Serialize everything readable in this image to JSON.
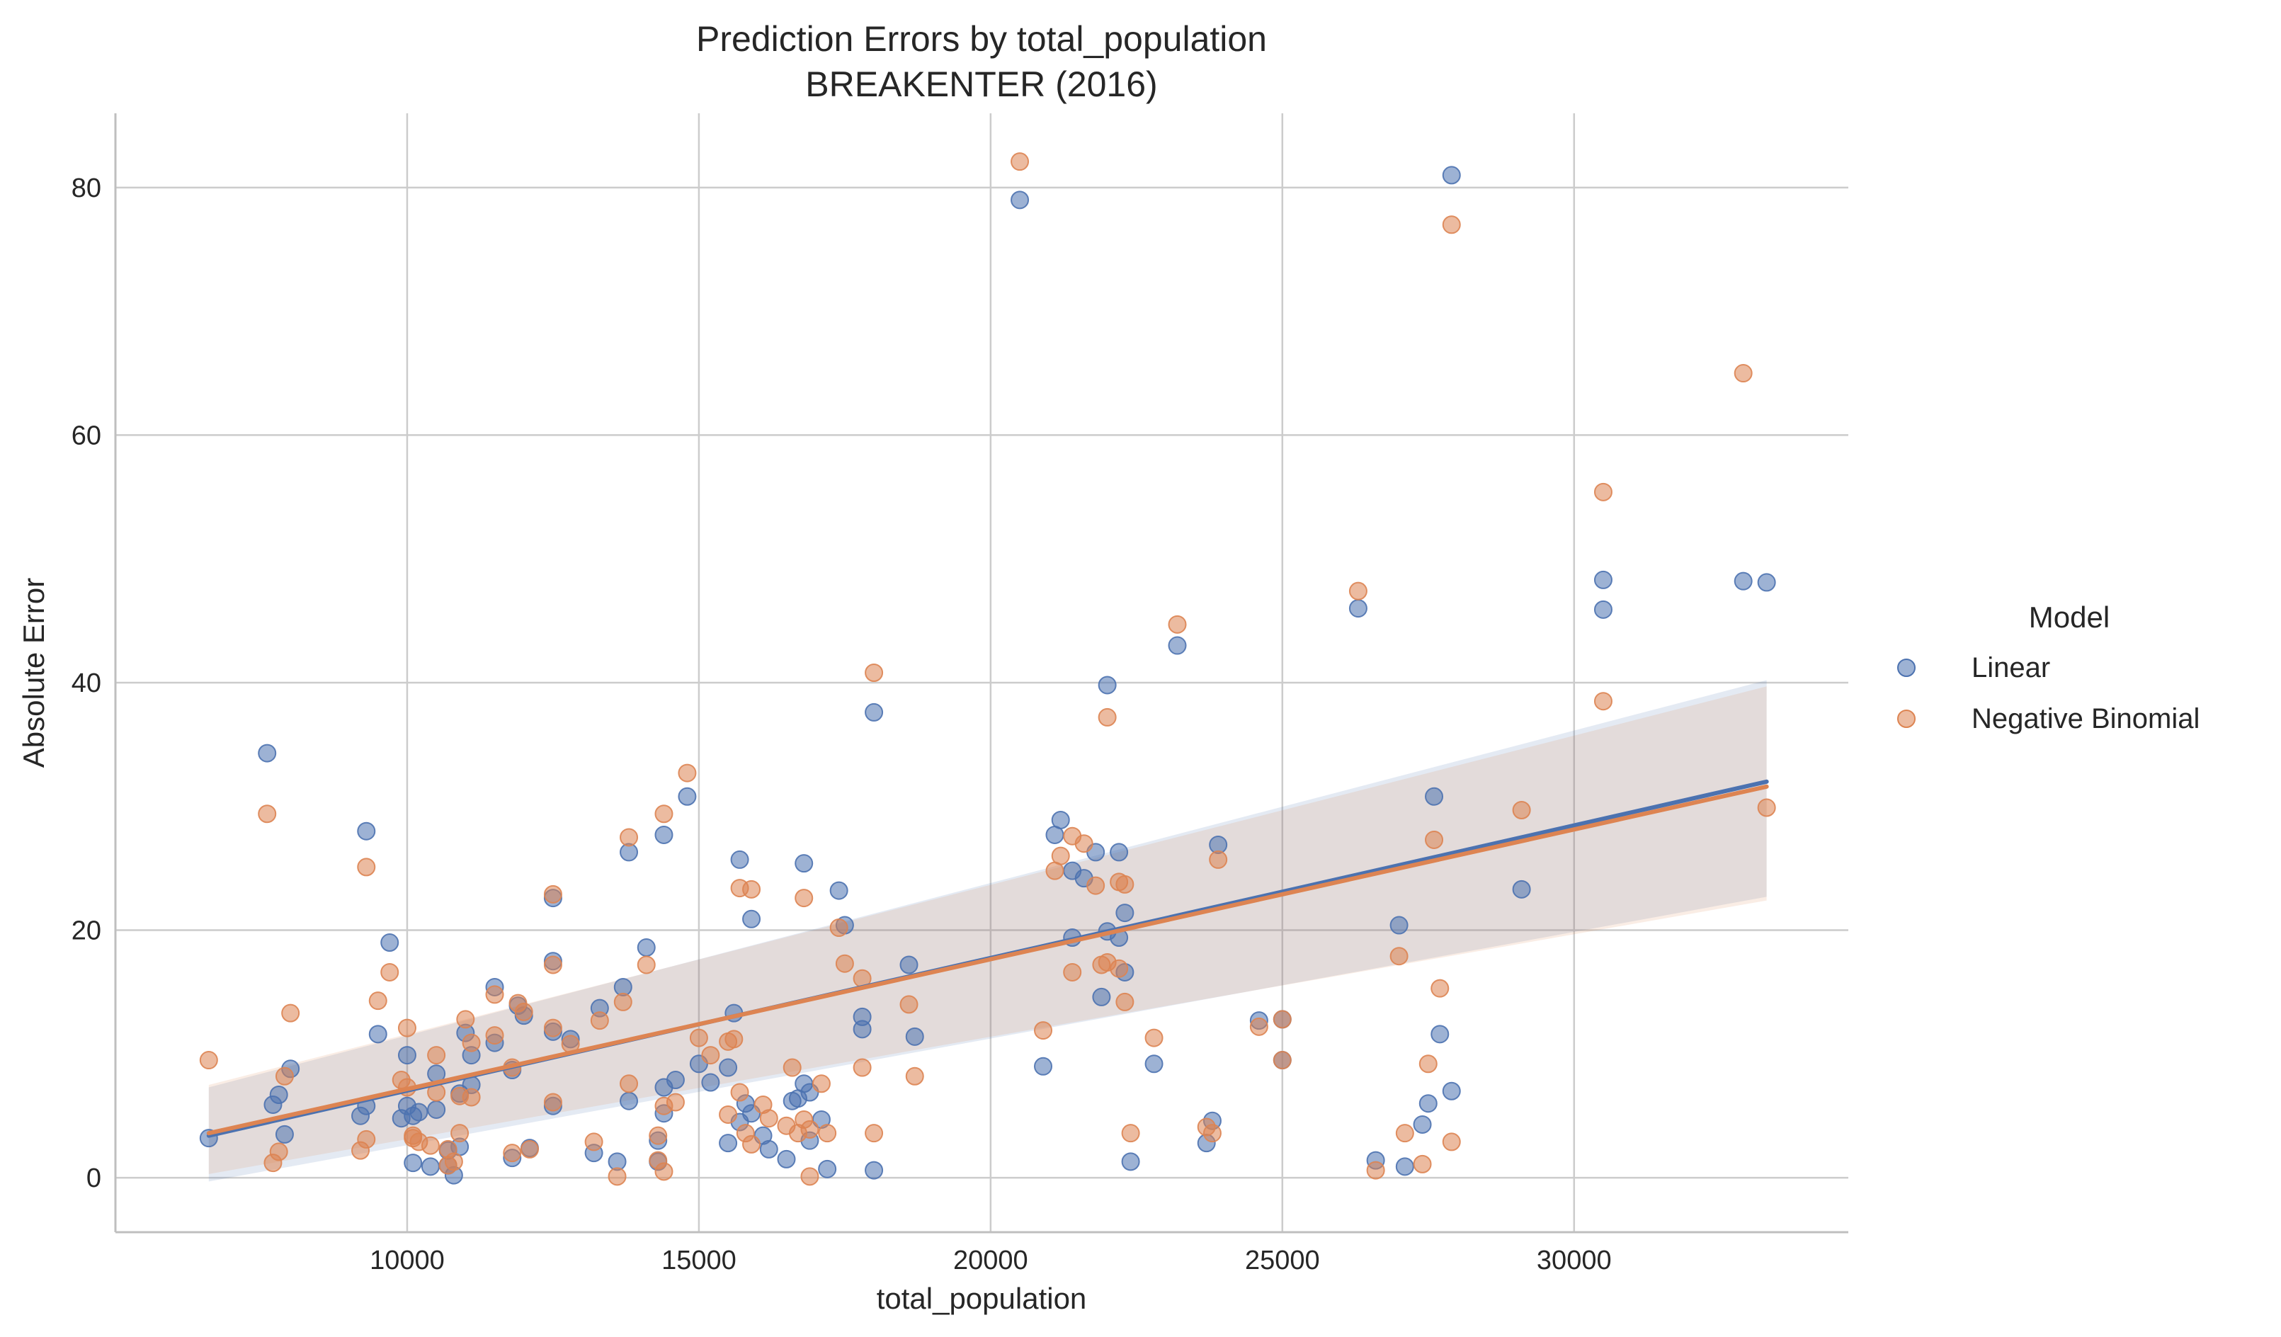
{
  "chart_data": {
    "type": "scatter",
    "title": "Prediction Errors by total_population",
    "subtitle": "BREAKENTER (2016)",
    "xlabel": "total_population",
    "ylabel": "Absolute Error",
    "xlim": [
      5000,
      34700
    ],
    "ylim": [
      -4.4,
      86
    ],
    "xticks": [
      10000,
      15000,
      20000,
      25000,
      30000
    ],
    "yticks": [
      0,
      20,
      40,
      60,
      80
    ],
    "grid": true,
    "legend": {
      "title": "Model",
      "placement": "right"
    },
    "series": [
      {
        "name": "Linear",
        "color": "#4c72b0",
        "points": [
          [
            6600,
            3.2
          ],
          [
            7600,
            34.3
          ],
          [
            7700,
            5.9
          ],
          [
            7800,
            6.7
          ],
          [
            7900,
            3.5
          ],
          [
            8000,
            8.8
          ],
          [
            9200,
            5.0
          ],
          [
            9300,
            28.0
          ],
          [
            9300,
            5.8
          ],
          [
            9500,
            11.6
          ],
          [
            9700,
            19.0
          ],
          [
            9900,
            4.8
          ],
          [
            10000,
            9.9
          ],
          [
            10000,
            5.8
          ],
          [
            10100,
            5.0
          ],
          [
            10100,
            1.2
          ],
          [
            10200,
            5.3
          ],
          [
            10400,
            0.9
          ],
          [
            10500,
            8.4
          ],
          [
            10500,
            5.5
          ],
          [
            10700,
            2.2
          ],
          [
            10700,
            1.0
          ],
          [
            10800,
            0.2
          ],
          [
            10900,
            6.8
          ],
          [
            10900,
            2.5
          ],
          [
            11000,
            11.7
          ],
          [
            11100,
            7.5
          ],
          [
            11100,
            9.9
          ],
          [
            11500,
            15.4
          ],
          [
            11500,
            10.9
          ],
          [
            11800,
            8.7
          ],
          [
            11800,
            1.6
          ],
          [
            11900,
            13.9
          ],
          [
            12000,
            13.1
          ],
          [
            12100,
            2.4
          ],
          [
            12500,
            11.8
          ],
          [
            12500,
            22.6
          ],
          [
            12500,
            17.5
          ],
          [
            12500,
            5.8
          ],
          [
            12800,
            11.2
          ],
          [
            13200,
            2.0
          ],
          [
            13300,
            13.7
          ],
          [
            13600,
            1.3
          ],
          [
            13700,
            15.4
          ],
          [
            13800,
            26.3
          ],
          [
            13800,
            6.2
          ],
          [
            14100,
            18.6
          ],
          [
            14300,
            3.0
          ],
          [
            14300,
            1.3
          ],
          [
            14400,
            5.2
          ],
          [
            14400,
            7.3
          ],
          [
            14400,
            27.7
          ],
          [
            14600,
            7.9
          ],
          [
            14800,
            30.8
          ],
          [
            15000,
            9.2
          ],
          [
            15200,
            7.7
          ],
          [
            15500,
            2.8
          ],
          [
            15500,
            8.9
          ],
          [
            15600,
            13.3
          ],
          [
            15700,
            4.5
          ],
          [
            15700,
            25.7
          ],
          [
            15800,
            6.0
          ],
          [
            15900,
            5.2
          ],
          [
            15900,
            20.9
          ],
          [
            16100,
            3.4
          ],
          [
            16200,
            2.3
          ],
          [
            16500,
            1.5
          ],
          [
            16600,
            6.2
          ],
          [
            16700,
            6.4
          ],
          [
            16800,
            25.4
          ],
          [
            16800,
            7.6
          ],
          [
            16900,
            6.9
          ],
          [
            16900,
            3.0
          ],
          [
            17100,
            4.7
          ],
          [
            17200,
            0.7
          ],
          [
            17400,
            23.2
          ],
          [
            17500,
            20.4
          ],
          [
            17800,
            12.0
          ],
          [
            17800,
            13.0
          ],
          [
            18000,
            37.6
          ],
          [
            18000,
            0.6
          ],
          [
            18600,
            17.2
          ],
          [
            18700,
            11.4
          ],
          [
            20500,
            79.0
          ],
          [
            20900,
            9.0
          ],
          [
            21100,
            27.7
          ],
          [
            21200,
            28.9
          ],
          [
            21400,
            19.4
          ],
          [
            21400,
            24.8
          ],
          [
            21600,
            24.2
          ],
          [
            21800,
            26.3
          ],
          [
            21900,
            14.6
          ],
          [
            22000,
            39.8
          ],
          [
            22000,
            19.9
          ],
          [
            22200,
            19.4
          ],
          [
            22200,
            26.3
          ],
          [
            22300,
            16.6
          ],
          [
            22300,
            21.4
          ],
          [
            22400,
            1.3
          ],
          [
            22800,
            9.2
          ],
          [
            23200,
            43.0
          ],
          [
            23700,
            2.8
          ],
          [
            23800,
            4.6
          ],
          [
            23900,
            26.9
          ],
          [
            24600,
            12.7
          ],
          [
            25000,
            12.8
          ],
          [
            25000,
            9.5
          ],
          [
            26300,
            46.0
          ],
          [
            26600,
            1.4
          ],
          [
            27000,
            20.4
          ],
          [
            27100,
            0.9
          ],
          [
            27400,
            4.3
          ],
          [
            27500,
            6.0
          ],
          [
            27600,
            30.8
          ],
          [
            27700,
            11.6
          ],
          [
            27900,
            81.0
          ],
          [
            27900,
            7.0
          ],
          [
            29100,
            23.3
          ],
          [
            30500,
            45.9
          ],
          [
            30500,
            48.3
          ],
          [
            32900,
            48.2
          ],
          [
            33300,
            48.1
          ]
        ]
      },
      {
        "name": "Negative Binomial",
        "color": "#dd8452",
        "points": [
          [
            6600,
            9.5
          ],
          [
            7600,
            29.4
          ],
          [
            7700,
            1.2
          ],
          [
            7800,
            2.1
          ],
          [
            7900,
            8.2
          ],
          [
            8000,
            13.3
          ],
          [
            9200,
            2.2
          ],
          [
            9300,
            25.1
          ],
          [
            9300,
            3.1
          ],
          [
            9500,
            14.3
          ],
          [
            9700,
            16.6
          ],
          [
            9900,
            7.9
          ],
          [
            10000,
            12.1
          ],
          [
            10000,
            7.3
          ],
          [
            10100,
            3.4
          ],
          [
            10100,
            3.2
          ],
          [
            10200,
            2.9
          ],
          [
            10400,
            2.6
          ],
          [
            10500,
            6.9
          ],
          [
            10500,
            9.9
          ],
          [
            10700,
            1.0
          ],
          [
            10700,
            2.3
          ],
          [
            10800,
            1.3
          ],
          [
            10900,
            3.6
          ],
          [
            10900,
            6.6
          ],
          [
            11000,
            12.8
          ],
          [
            11100,
            10.9
          ],
          [
            11100,
            6.5
          ],
          [
            11500,
            14.8
          ],
          [
            11500,
            11.5
          ],
          [
            11800,
            8.9
          ],
          [
            11800,
            2.0
          ],
          [
            11900,
            14.1
          ],
          [
            12000,
            13.4
          ],
          [
            12100,
            2.3
          ],
          [
            12500,
            12.1
          ],
          [
            12500,
            22.9
          ],
          [
            12500,
            17.2
          ],
          [
            12500,
            6.1
          ],
          [
            12800,
            10.8
          ],
          [
            13200,
            2.9
          ],
          [
            13300,
            12.7
          ],
          [
            13600,
            0.1
          ],
          [
            13700,
            14.2
          ],
          [
            13800,
            27.5
          ],
          [
            13800,
            7.6
          ],
          [
            14100,
            17.2
          ],
          [
            14300,
            1.4
          ],
          [
            14300,
            3.4
          ],
          [
            14400,
            0.5
          ],
          [
            14400,
            5.8
          ],
          [
            14400,
            29.4
          ],
          [
            14600,
            6.1
          ],
          [
            14800,
            32.7
          ],
          [
            15000,
            11.3
          ],
          [
            15200,
            9.9
          ],
          [
            15500,
            5.1
          ],
          [
            15500,
            11.0
          ],
          [
            15600,
            11.2
          ],
          [
            15700,
            6.9
          ],
          [
            15700,
            23.4
          ],
          [
            15800,
            3.6
          ],
          [
            15900,
            2.7
          ],
          [
            15900,
            23.3
          ],
          [
            16100,
            5.9
          ],
          [
            16200,
            4.8
          ],
          [
            16500,
            4.2
          ],
          [
            16600,
            8.9
          ],
          [
            16700,
            3.6
          ],
          [
            16800,
            22.6
          ],
          [
            16800,
            4.7
          ],
          [
            16900,
            3.9
          ],
          [
            16900,
            0.1
          ],
          [
            17100,
            7.6
          ],
          [
            17200,
            3.6
          ],
          [
            17400,
            20.2
          ],
          [
            17500,
            17.3
          ],
          [
            17800,
            8.9
          ],
          [
            17800,
            16.1
          ],
          [
            18000,
            40.8
          ],
          [
            18000,
            3.6
          ],
          [
            18600,
            14.0
          ],
          [
            18700,
            8.2
          ],
          [
            20500,
            82.1
          ],
          [
            20900,
            11.9
          ],
          [
            21100,
            24.8
          ],
          [
            21200,
            26.0
          ],
          [
            21400,
            16.6
          ],
          [
            21400,
            27.6
          ],
          [
            21600,
            27.0
          ],
          [
            21800,
            23.6
          ],
          [
            21900,
            17.2
          ],
          [
            22000,
            37.2
          ],
          [
            22000,
            17.4
          ],
          [
            22200,
            16.9
          ],
          [
            22200,
            23.9
          ],
          [
            22300,
            14.2
          ],
          [
            22300,
            23.7
          ],
          [
            22400,
            3.6
          ],
          [
            22800,
            11.3
          ],
          [
            23200,
            44.7
          ],
          [
            23700,
            4.1
          ],
          [
            23800,
            3.6
          ],
          [
            23900,
            25.7
          ],
          [
            24600,
            12.2
          ],
          [
            25000,
            12.8
          ],
          [
            25000,
            9.5
          ],
          [
            26300,
            47.4
          ],
          [
            26600,
            0.6
          ],
          [
            27000,
            17.9
          ],
          [
            27100,
            3.6
          ],
          [
            27400,
            1.1
          ],
          [
            27500,
            9.2
          ],
          [
            27600,
            27.3
          ],
          [
            27700,
            15.3
          ],
          [
            27900,
            77.0
          ],
          [
            27900,
            2.9
          ],
          [
            29100,
            29.7
          ],
          [
            30500,
            55.4
          ],
          [
            30500,
            38.5
          ],
          [
            32900,
            65.0
          ],
          [
            33300,
            29.9
          ]
        ]
      }
    ],
    "fits": [
      {
        "series": "Linear",
        "color": "#4c72b0",
        "x": [
          6600,
          33300
        ],
        "y": [
          3.4,
          32.0
        ],
        "band_lower": [
          -0.3,
          22.7
        ],
        "band_upper": [
          7.3,
          40.2
        ]
      },
      {
        "series": "Negative Binomial",
        "color": "#dd8452",
        "x": [
          6600,
          33300
        ],
        "y": [
          3.6,
          31.6
        ],
        "band_lower": [
          0.3,
          22.4
        ],
        "band_upper": [
          7.5,
          39.7
        ]
      }
    ]
  }
}
